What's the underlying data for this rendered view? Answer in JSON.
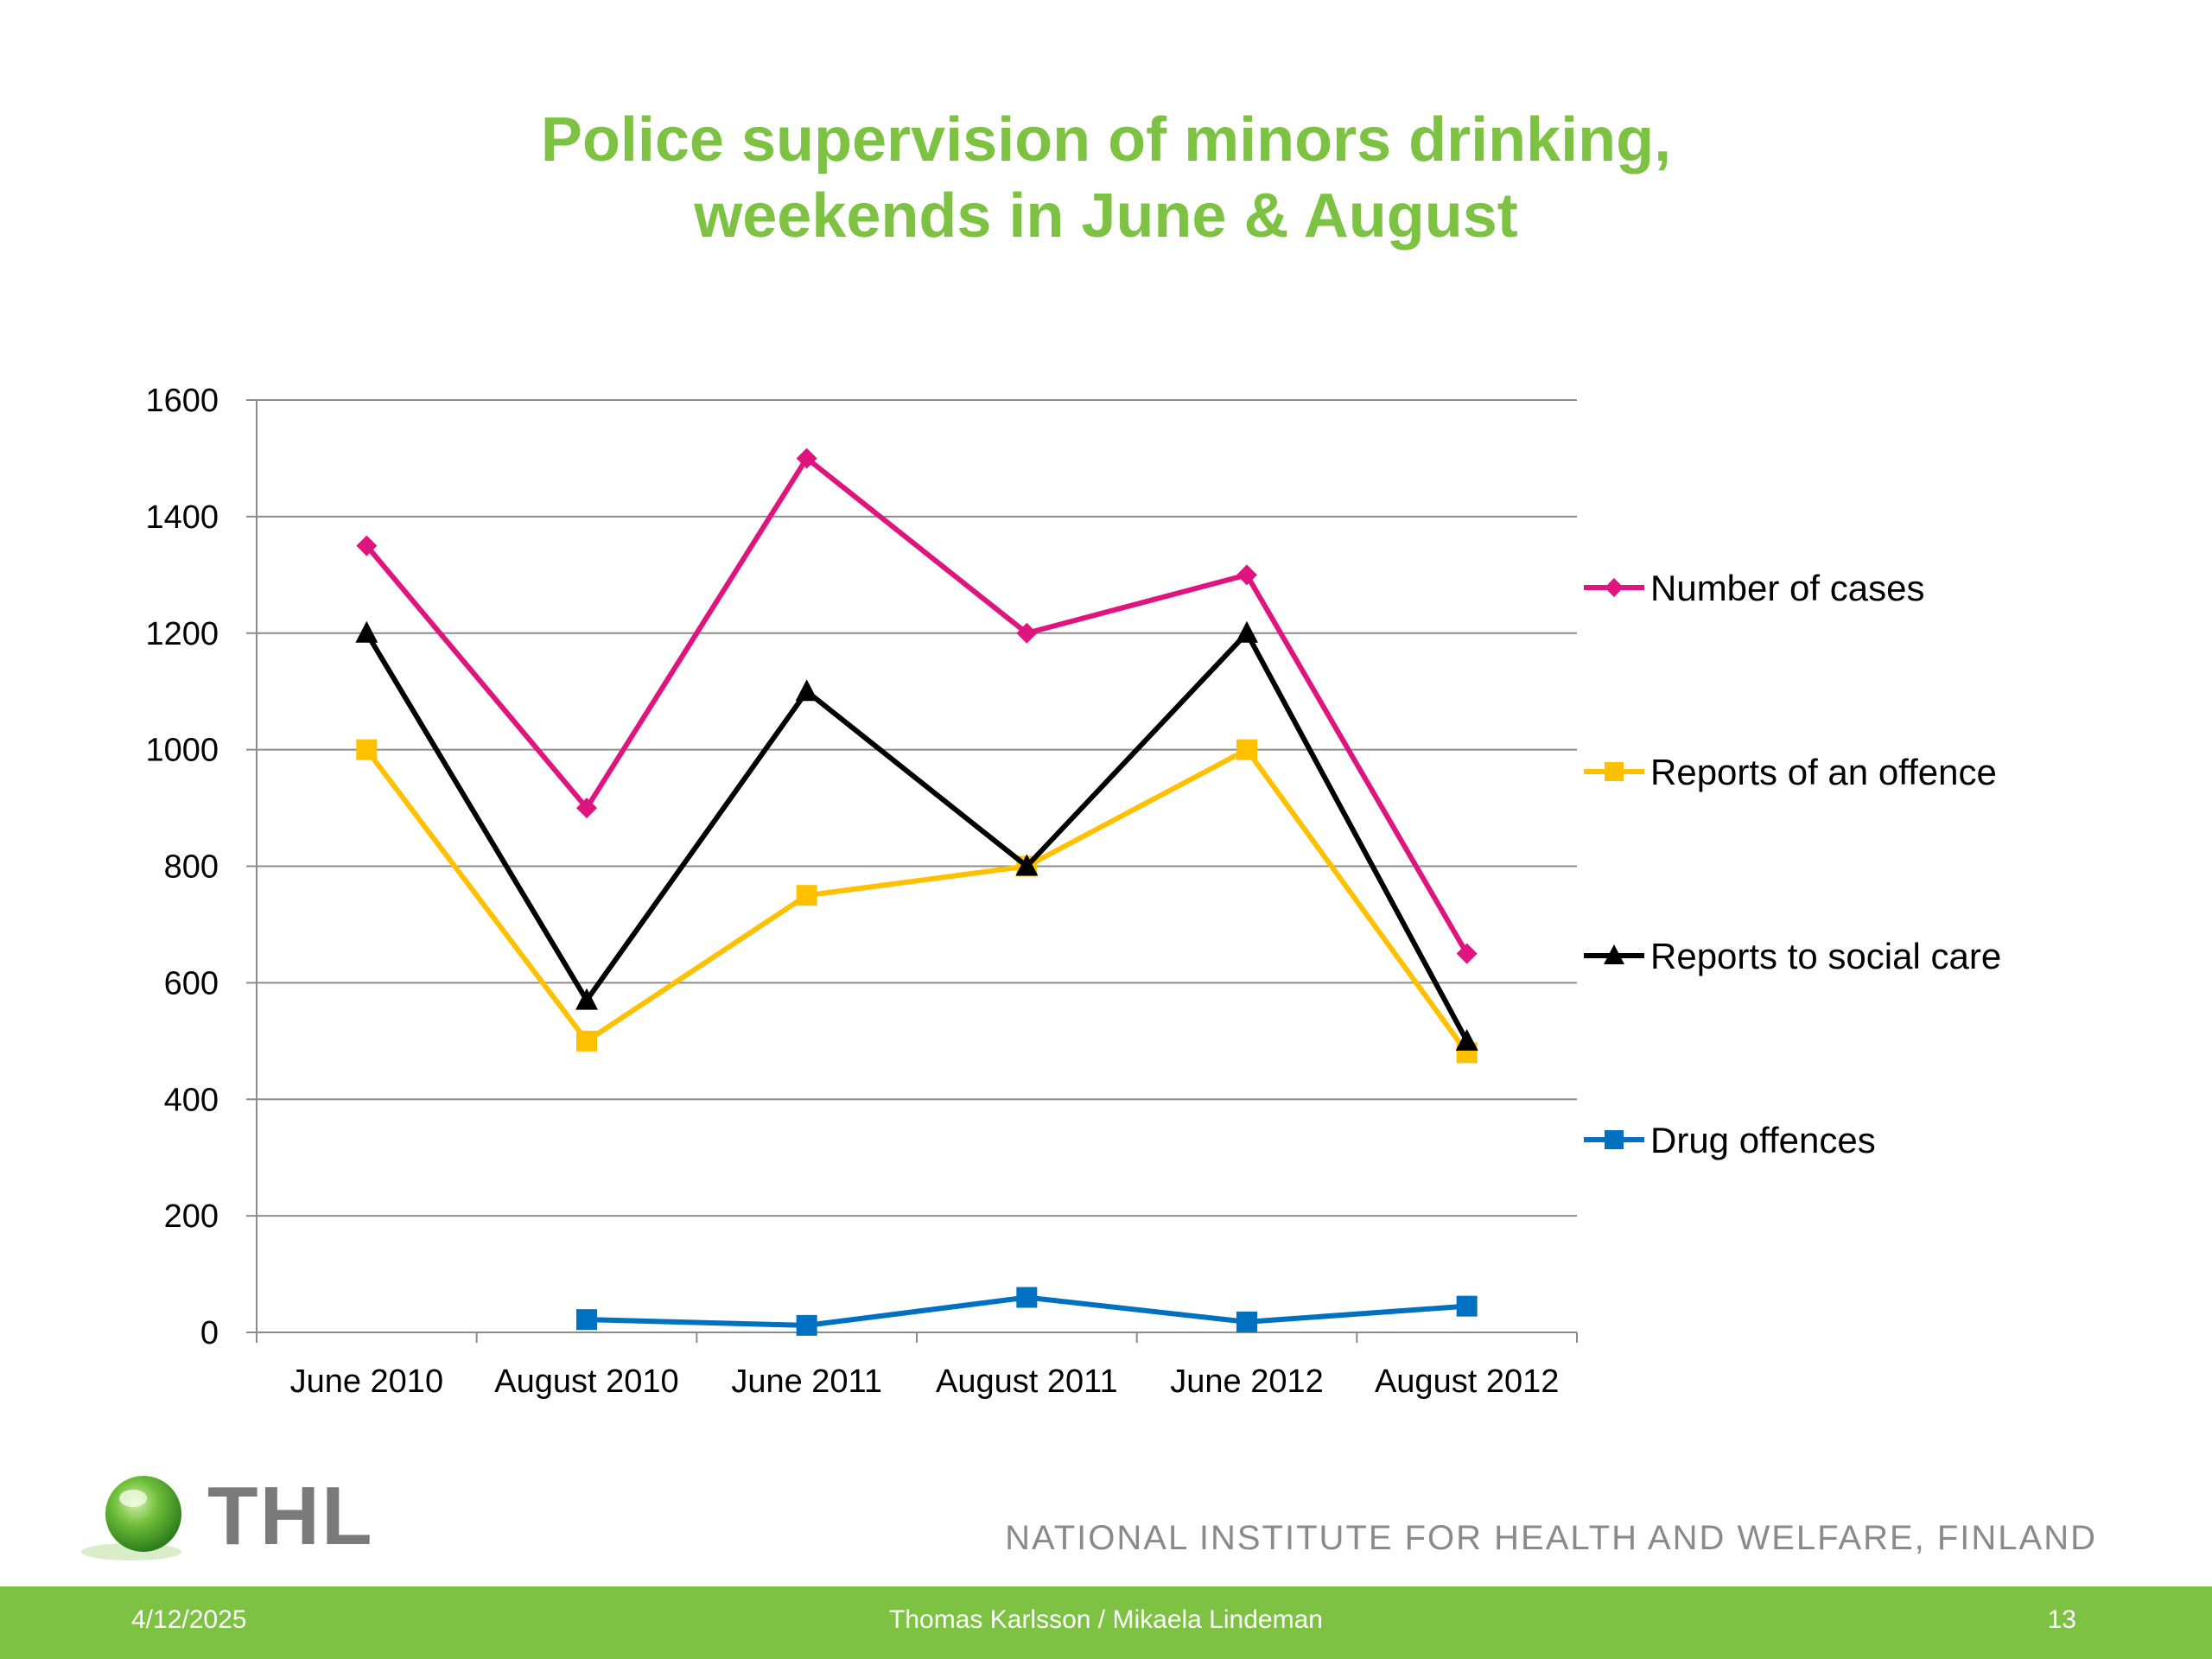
{
  "slide": {
    "title_line1": "Police supervision of minors drinking,",
    "title_line2": "weekends in June & August",
    "logo_text": "THL",
    "institute": "NATIONAL INSTITUTE FOR HEALTH AND WELFARE, FINLAND",
    "footer": {
      "date": "4/12/2025",
      "authors": "Thomas Karlsson / Mikaela Lindeman",
      "page": "13"
    }
  },
  "chart_data": {
    "type": "line",
    "categories": [
      "June 2010",
      "August 2010",
      "June 2011",
      "August 2011",
      "June 2012",
      "August 2012"
    ],
    "ylim": [
      0,
      1600
    ],
    "yticks": [
      0,
      200,
      400,
      600,
      800,
      1000,
      1200,
      1400,
      1600
    ],
    "ytick_labels": [
      "0",
      "200",
      "400",
      "600",
      "800",
      "1000",
      "1200",
      "1400",
      "1600"
    ],
    "grid": true,
    "legend_position": "right",
    "series": [
      {
        "name": "Number of cases",
        "color": "#e0147f",
        "marker": "diamond",
        "values": [
          1350,
          900,
          1500,
          1200,
          1300,
          650
        ]
      },
      {
        "name": "Reports of an offence",
        "color": "#ffc000",
        "marker": "square",
        "values": [
          1000,
          500,
          750,
          800,
          1000,
          480
        ]
      },
      {
        "name": "Reports to social care",
        "color": "#000000",
        "marker": "triangle",
        "values": [
          1200,
          570,
          1100,
          800,
          1200,
          500
        ]
      },
      {
        "name": "Drug offences",
        "color": "#0070c0",
        "marker": "square",
        "values": [
          null,
          22,
          12,
          60,
          18,
          45
        ]
      }
    ]
  }
}
